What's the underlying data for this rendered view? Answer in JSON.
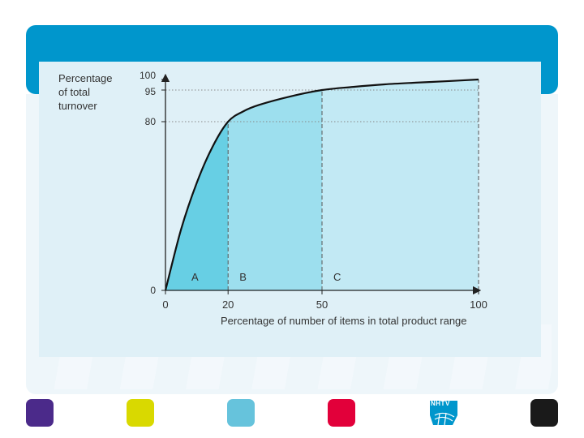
{
  "chart_data": {
    "type": "area",
    "ylabel": [
      "Percentage",
      "of total",
      "turnover"
    ],
    "xlabel": "Percentage of number of items in total product range",
    "xlim": [
      0,
      100
    ],
    "ylim": [
      0,
      100
    ],
    "x_ticks": [
      "0",
      "20",
      "50",
      "100"
    ],
    "y_ticks": [
      "0",
      "80",
      "95",
      "100"
    ],
    "curve": [
      {
        "x": 0,
        "y": 0
      },
      {
        "x": 5,
        "y": 29
      },
      {
        "x": 10,
        "y": 51
      },
      {
        "x": 15,
        "y": 68
      },
      {
        "x": 20,
        "y": 80
      },
      {
        "x": 25,
        "y": 85
      },
      {
        "x": 30,
        "y": 88
      },
      {
        "x": 40,
        "y": 92
      },
      {
        "x": 50,
        "y": 95
      },
      {
        "x": 60,
        "y": 96.5
      },
      {
        "x": 70,
        "y": 97.7
      },
      {
        "x": 80,
        "y": 98.5
      },
      {
        "x": 90,
        "y": 99.2
      },
      {
        "x": 100,
        "y": 100
      }
    ],
    "regions": [
      {
        "label": "A",
        "from": 0,
        "to": 20,
        "color": "#67cfe4"
      },
      {
        "label": "B",
        "from": 20,
        "to": 50,
        "color": "#9ddfee"
      },
      {
        "label": "C",
        "from": 50,
        "to": 100,
        "color": "#c2e9f4"
      }
    ],
    "reference_lines": [
      {
        "axis": "y",
        "value": 80
      },
      {
        "axis": "y",
        "value": 95
      },
      {
        "axis": "x",
        "value": 20
      },
      {
        "axis": "x",
        "value": 50
      },
      {
        "axis": "x",
        "value": 100
      }
    ],
    "grid": false
  },
  "footer": {
    "squares": [
      {
        "color": "#4b2a8a"
      },
      {
        "color": "#d9d900"
      },
      {
        "color": "#66c3dc"
      },
      {
        "color": "#e2003a"
      },
      {
        "color": "#1a1a1a"
      }
    ],
    "logo_text": "NHTV"
  },
  "theme": {
    "header_color": "#0096cc",
    "panel_color": "#dff0f7"
  }
}
